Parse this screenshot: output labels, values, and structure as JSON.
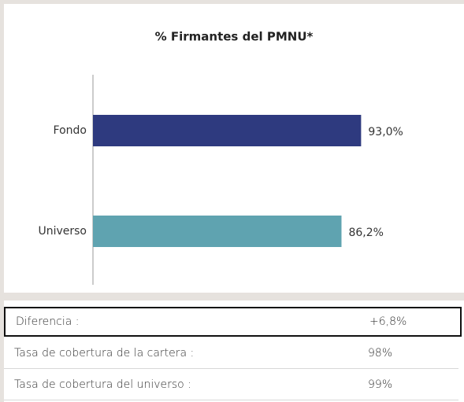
{
  "chart_data": {
    "type": "hbar",
    "title": "% Firmantes del PMNU*",
    "categories": [
      "Fondo",
      "Universo"
    ],
    "values": [
      93.0,
      86.2
    ],
    "value_labels": [
      "93,0%",
      "86,2%"
    ],
    "colors": [
      "#2e3a7f",
      "#5fa3b0"
    ],
    "xlim": [
      0,
      100
    ]
  },
  "table": {
    "rows": [
      [
        "Diferencia :",
        "+6,8%"
      ],
      [
        "Tasa de cobertura de la cartera :",
        "98%"
      ],
      [
        "Tasa de cobertura del universo :",
        "99%"
      ]
    ]
  }
}
